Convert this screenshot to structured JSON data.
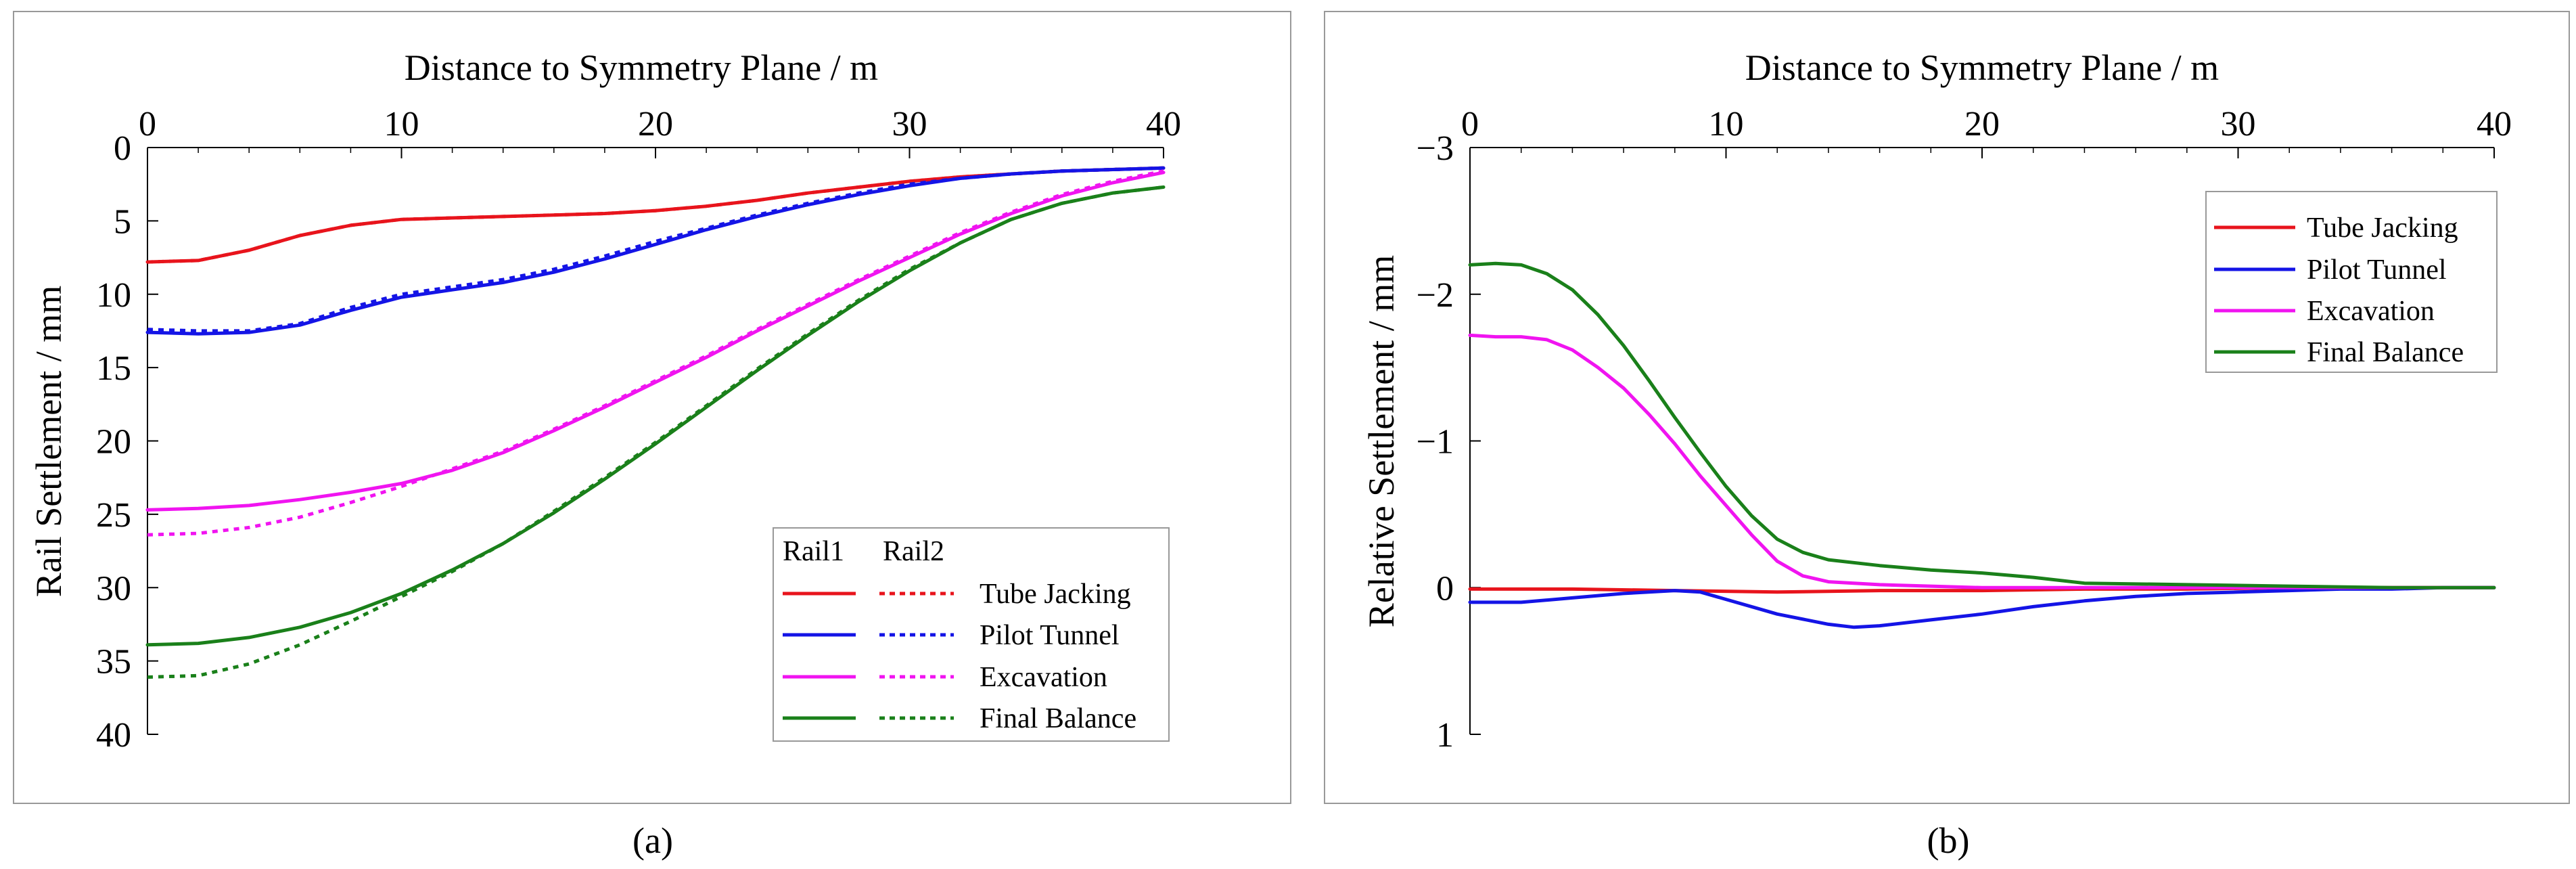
{
  "figure": {
    "captions": [
      "(a)",
      "(b)"
    ]
  },
  "chart_data": [
    {
      "type": "line",
      "xlabel": "Distance to Symmetry Plane / m",
      "ylabel": "Rail Settlement / mm",
      "xlim": [
        0,
        40
      ],
      "ylim": [
        0,
        40
      ],
      "y_inverted": true,
      "x_axis_position": "top",
      "x_ticks": [
        "0",
        "10",
        "20",
        "30",
        "40"
      ],
      "y_ticks": [
        "0",
        "5",
        "10",
        "15",
        "20",
        "25",
        "30",
        "35",
        "40"
      ],
      "legend": {
        "position": "bottom-right",
        "header": [
          "Rail1",
          "Rail2"
        ],
        "entries": [
          "Tube Jacking",
          "Pilot Tunnel",
          "Excavation",
          "Final Balance"
        ]
      },
      "series": [
        {
          "name": "Tube Jacking",
          "rail": "Rail1",
          "color": "#e8141c",
          "style": "solid",
          "x": [
            0,
            2,
            4,
            6,
            8,
            10,
            12,
            14,
            16,
            18,
            20,
            22,
            24,
            26,
            28,
            30,
            32,
            34,
            36,
            38,
            40
          ],
          "y": [
            7.8,
            7.7,
            7.0,
            6.0,
            5.3,
            4.9,
            4.8,
            4.7,
            4.6,
            4.5,
            4.3,
            4.0,
            3.6,
            3.1,
            2.7,
            2.3,
            2.0,
            1.8,
            1.6,
            1.5,
            1.4
          ]
        },
        {
          "name": "Tube Jacking",
          "rail": "Rail2",
          "color": "#e8141c",
          "style": "dotted",
          "x": [
            0,
            2,
            4,
            6,
            8,
            10,
            12,
            14,
            16,
            18,
            20,
            22,
            24,
            26,
            28,
            30,
            32,
            34,
            36,
            38,
            40
          ],
          "y": [
            7.8,
            7.7,
            7.0,
            6.0,
            5.3,
            4.9,
            4.8,
            4.7,
            4.6,
            4.5,
            4.3,
            4.0,
            3.6,
            3.1,
            2.7,
            2.3,
            2.0,
            1.8,
            1.6,
            1.5,
            1.4
          ]
        },
        {
          "name": "Pilot Tunnel",
          "rail": "Rail1",
          "color": "#1414e6",
          "style": "solid",
          "x": [
            0,
            2,
            4,
            6,
            8,
            10,
            12,
            14,
            16,
            18,
            20,
            22,
            24,
            26,
            28,
            30,
            32,
            34,
            36,
            38,
            40
          ],
          "y": [
            12.6,
            12.7,
            12.6,
            12.1,
            11.1,
            10.2,
            9.7,
            9.2,
            8.5,
            7.6,
            6.6,
            5.6,
            4.7,
            3.9,
            3.2,
            2.6,
            2.1,
            1.8,
            1.6,
            1.5,
            1.4
          ]
        },
        {
          "name": "Pilot Tunnel",
          "rail": "Rail2",
          "color": "#1414e6",
          "style": "dotted",
          "x": [
            0,
            2,
            4,
            6,
            8,
            10,
            12,
            14,
            16,
            18,
            20,
            22,
            24,
            26,
            28,
            30,
            32,
            34,
            36,
            38,
            40
          ],
          "y": [
            12.4,
            12.5,
            12.5,
            12.0,
            10.9,
            10.0,
            9.5,
            9.0,
            8.3,
            7.4,
            6.4,
            5.5,
            4.6,
            3.8,
            3.1,
            2.5,
            2.1,
            1.8,
            1.6,
            1.5,
            1.4
          ]
        },
        {
          "name": "Excavation",
          "rail": "Rail1",
          "color": "#f014f0",
          "style": "solid",
          "x": [
            0,
            2,
            4,
            6,
            8,
            10,
            12,
            14,
            16,
            18,
            20,
            22,
            24,
            26,
            28,
            30,
            32,
            34,
            36,
            38,
            40
          ],
          "y": [
            24.7,
            24.6,
            24.4,
            24.0,
            23.5,
            22.9,
            22.0,
            20.8,
            19.3,
            17.7,
            16.0,
            14.3,
            12.5,
            10.8,
            9.1,
            7.5,
            5.9,
            4.5,
            3.3,
            2.4,
            1.7
          ]
        },
        {
          "name": "Excavation",
          "rail": "Rail2",
          "color": "#f014f0",
          "style": "dotted",
          "x": [
            0,
            2,
            4,
            6,
            8,
            10,
            12,
            14,
            16,
            18,
            20,
            22,
            24,
            26,
            28,
            30,
            32,
            34,
            36,
            38,
            40
          ],
          "y": [
            26.4,
            26.3,
            25.9,
            25.2,
            24.2,
            23.1,
            21.9,
            20.7,
            19.2,
            17.6,
            15.9,
            14.2,
            12.4,
            10.7,
            9.0,
            7.4,
            5.8,
            4.4,
            3.2,
            2.3,
            1.6
          ]
        },
        {
          "name": "Final Balance",
          "rail": "Rail1",
          "color": "#1a801a",
          "style": "solid",
          "x": [
            0,
            2,
            4,
            6,
            8,
            10,
            12,
            14,
            16,
            18,
            20,
            22,
            24,
            26,
            28,
            30,
            32,
            34,
            36,
            38,
            40
          ],
          "y": [
            33.9,
            33.8,
            33.4,
            32.7,
            31.7,
            30.4,
            28.8,
            27.0,
            24.9,
            22.6,
            20.2,
            17.7,
            15.2,
            12.8,
            10.5,
            8.4,
            6.5,
            4.9,
            3.8,
            3.1,
            2.7
          ]
        },
        {
          "name": "Final Balance",
          "rail": "Rail2",
          "color": "#1a801a",
          "style": "dotted",
          "x": [
            0,
            2,
            4,
            6,
            8,
            10,
            12,
            14,
            16,
            18,
            20,
            22,
            24,
            26,
            28,
            30,
            32,
            34,
            36,
            38,
            40
          ],
          "y": [
            36.1,
            36.0,
            35.2,
            33.9,
            32.3,
            30.6,
            28.9,
            27.0,
            24.8,
            22.5,
            20.1,
            17.6,
            15.1,
            12.7,
            10.4,
            8.3,
            6.5,
            4.9,
            3.8,
            3.1,
            2.7
          ]
        }
      ]
    },
    {
      "type": "line",
      "xlabel": "Distance to Symmetry Plane / m",
      "ylabel": "Relative Settlement / mm",
      "xlim": [
        0,
        40
      ],
      "ylim": [
        -3,
        1
      ],
      "y_inverted": true,
      "x_axis_position": "top",
      "x_ticks": [
        "0",
        "10",
        "20",
        "30",
        "40"
      ],
      "y_ticks": [
        "−3",
        "−2",
        "−1",
        "0",
        "1"
      ],
      "legend": {
        "position": "top-right",
        "entries": [
          "Tube Jacking",
          "Pilot Tunnel",
          "Excavation",
          "Final Balance"
        ]
      },
      "series": [
        {
          "name": "Tube Jacking",
          "color": "#e8141c",
          "x": [
            0,
            4,
            8,
            12,
            16,
            20,
            24,
            28,
            32,
            36,
            40
          ],
          "y": [
            0.01,
            0.01,
            0.02,
            0.03,
            0.02,
            0.02,
            0.01,
            0.01,
            0.0,
            0.0,
            0.0
          ]
        },
        {
          "name": "Pilot Tunnel",
          "color": "#1414e6",
          "x": [
            0,
            2,
            4,
            6,
            8,
            9,
            10,
            12,
            14,
            15,
            16,
            18,
            20,
            22,
            24,
            26,
            28,
            30,
            32,
            34,
            36,
            38,
            40
          ],
          "y": [
            0.1,
            0.1,
            0.07,
            0.04,
            0.02,
            0.03,
            0.08,
            0.18,
            0.25,
            0.27,
            0.26,
            0.22,
            0.18,
            0.13,
            0.09,
            0.06,
            0.04,
            0.03,
            0.02,
            0.01,
            0.01,
            0.0,
            0.0
          ]
        },
        {
          "name": "Excavation",
          "color": "#f014f0",
          "x": [
            0,
            1,
            2,
            3,
            4,
            5,
            6,
            7,
            8,
            9,
            10,
            11,
            12,
            13,
            14,
            16,
            18,
            20,
            24,
            28,
            32,
            36,
            40
          ],
          "y": [
            -1.72,
            -1.71,
            -1.71,
            -1.69,
            -1.62,
            -1.5,
            -1.36,
            -1.18,
            -0.98,
            -0.76,
            -0.56,
            -0.36,
            -0.18,
            -0.08,
            -0.04,
            -0.02,
            -0.01,
            0.0,
            0.0,
            0.0,
            0.0,
            0.0,
            0.0
          ]
        },
        {
          "name": "Final Balance",
          "color": "#1a801a",
          "x": [
            0,
            1,
            2,
            3,
            4,
            5,
            6,
            7,
            8,
            9,
            10,
            11,
            12,
            13,
            14,
            16,
            18,
            20,
            22,
            24,
            28,
            32,
            36,
            40
          ],
          "y": [
            -2.2,
            -2.21,
            -2.2,
            -2.14,
            -2.03,
            -1.86,
            -1.65,
            -1.41,
            -1.16,
            -0.92,
            -0.69,
            -0.49,
            -0.33,
            -0.24,
            -0.19,
            -0.15,
            -0.12,
            -0.1,
            -0.07,
            -0.03,
            -0.02,
            -0.01,
            0.0,
            0.0
          ]
        }
      ]
    }
  ]
}
